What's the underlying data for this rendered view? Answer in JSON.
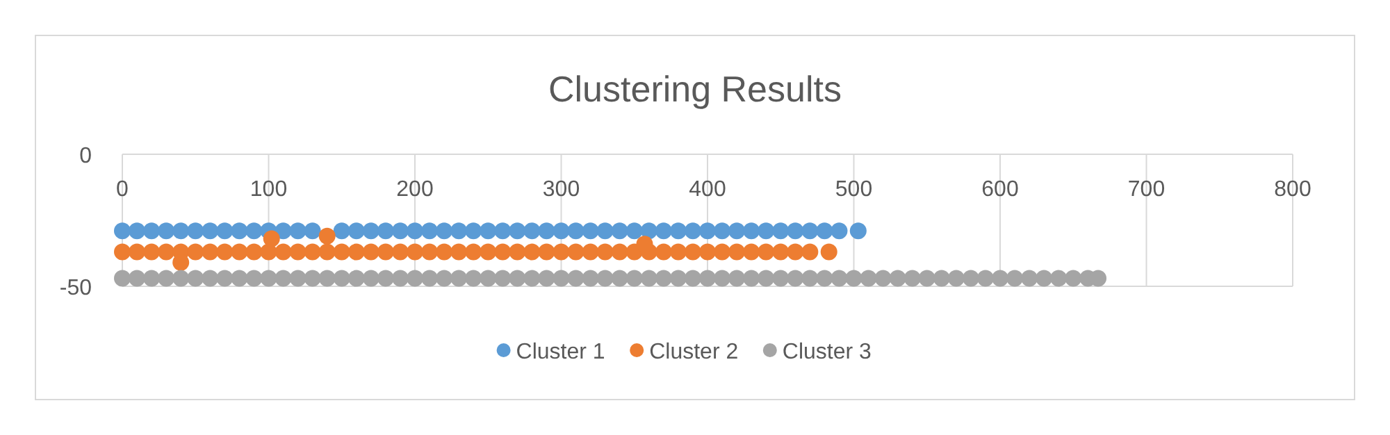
{
  "chart_data": {
    "type": "scatter",
    "title": "Clustering Results",
    "xlim": [
      0,
      800
    ],
    "xticks": [
      0,
      100,
      200,
      300,
      400,
      500,
      600,
      700,
      800
    ],
    "ylim": [
      -50,
      0
    ],
    "yticks": [
      -50,
      0
    ],
    "grid": "x",
    "legend": "bottom",
    "marker": "circle",
    "series": [
      {
        "name": "Cluster 1",
        "color": "#5b9bd5",
        "x": [
          0,
          10,
          20,
          30,
          40,
          50,
          60,
          70,
          80,
          90,
          100,
          110,
          120,
          130,
          150,
          160,
          170,
          180,
          190,
          200,
          210,
          220,
          230,
          240,
          250,
          260,
          270,
          280,
          290,
          300,
          310,
          320,
          330,
          340,
          350,
          360,
          370,
          380,
          390,
          400,
          410,
          420,
          430,
          440,
          450,
          460,
          470,
          480,
          490,
          503
        ],
        "values": [
          -29,
          -29,
          -29,
          -29,
          -29,
          -29,
          -29,
          -29,
          -29,
          -29,
          -29,
          -29,
          -29,
          -29,
          -29,
          -29,
          -29,
          -29,
          -29,
          -29,
          -29,
          -29,
          -29,
          -29,
          -29,
          -29,
          -29,
          -29,
          -29,
          -29,
          -29,
          -29,
          -29,
          -29,
          -29,
          -29,
          -29,
          -29,
          -29,
          -29,
          -29,
          -29,
          -29,
          -29,
          -29,
          -29,
          -29,
          -29,
          -29,
          -29
        ]
      },
      {
        "name": "Cluster 2",
        "color": "#ed7d31",
        "x": [
          0,
          10,
          20,
          30,
          40,
          50,
          60,
          70,
          80,
          90,
          100,
          110,
          120,
          130,
          140,
          150,
          160,
          170,
          180,
          190,
          200,
          210,
          220,
          230,
          240,
          250,
          260,
          270,
          280,
          290,
          300,
          310,
          320,
          330,
          340,
          350,
          360,
          370,
          380,
          390,
          400,
          410,
          420,
          430,
          440,
          450,
          460,
          470,
          483,
          40,
          102,
          140,
          357
        ],
        "values": [
          -37,
          -37,
          -37,
          -37,
          -37,
          -37,
          -37,
          -37,
          -37,
          -37,
          -37,
          -37,
          -37,
          -37,
          -37,
          -37,
          -37,
          -37,
          -37,
          -37,
          -37,
          -37,
          -37,
          -37,
          -37,
          -37,
          -37,
          -37,
          -37,
          -37,
          -37,
          -37,
          -37,
          -37,
          -37,
          -37,
          -37,
          -37,
          -37,
          -37,
          -37,
          -37,
          -37,
          -37,
          -37,
          -37,
          -37,
          -37,
          -37,
          -41,
          -32,
          -31,
          -34
        ]
      },
      {
        "name": "Cluster 3",
        "color": "#a5a5a5",
        "x": [
          0,
          10,
          20,
          30,
          40,
          50,
          60,
          70,
          80,
          90,
          100,
          110,
          120,
          130,
          140,
          150,
          160,
          170,
          180,
          190,
          200,
          210,
          220,
          230,
          240,
          250,
          260,
          270,
          280,
          290,
          300,
          310,
          320,
          330,
          340,
          350,
          360,
          370,
          380,
          390,
          400,
          410,
          420,
          430,
          440,
          450,
          460,
          470,
          480,
          490,
          500,
          510,
          520,
          530,
          540,
          550,
          560,
          570,
          580,
          590,
          600,
          610,
          620,
          630,
          640,
          650,
          660,
          667
        ],
        "values": [
          -47,
          -47,
          -47,
          -47,
          -47,
          -47,
          -47,
          -47,
          -47,
          -47,
          -47,
          -47,
          -47,
          -47,
          -47,
          -47,
          -47,
          -47,
          -47,
          -47,
          -47,
          -47,
          -47,
          -47,
          -47,
          -47,
          -47,
          -47,
          -47,
          -47,
          -47,
          -47,
          -47,
          -47,
          -47,
          -47,
          -47,
          -47,
          -47,
          -47,
          -47,
          -47,
          -47,
          -47,
          -47,
          -47,
          -47,
          -47,
          -47,
          -47,
          -47,
          -47,
          -47,
          -47,
          -47,
          -47,
          -47,
          -47,
          -47,
          -47,
          -47,
          -47,
          -47,
          -47,
          -47,
          -47,
          -47,
          -47
        ]
      }
    ]
  }
}
